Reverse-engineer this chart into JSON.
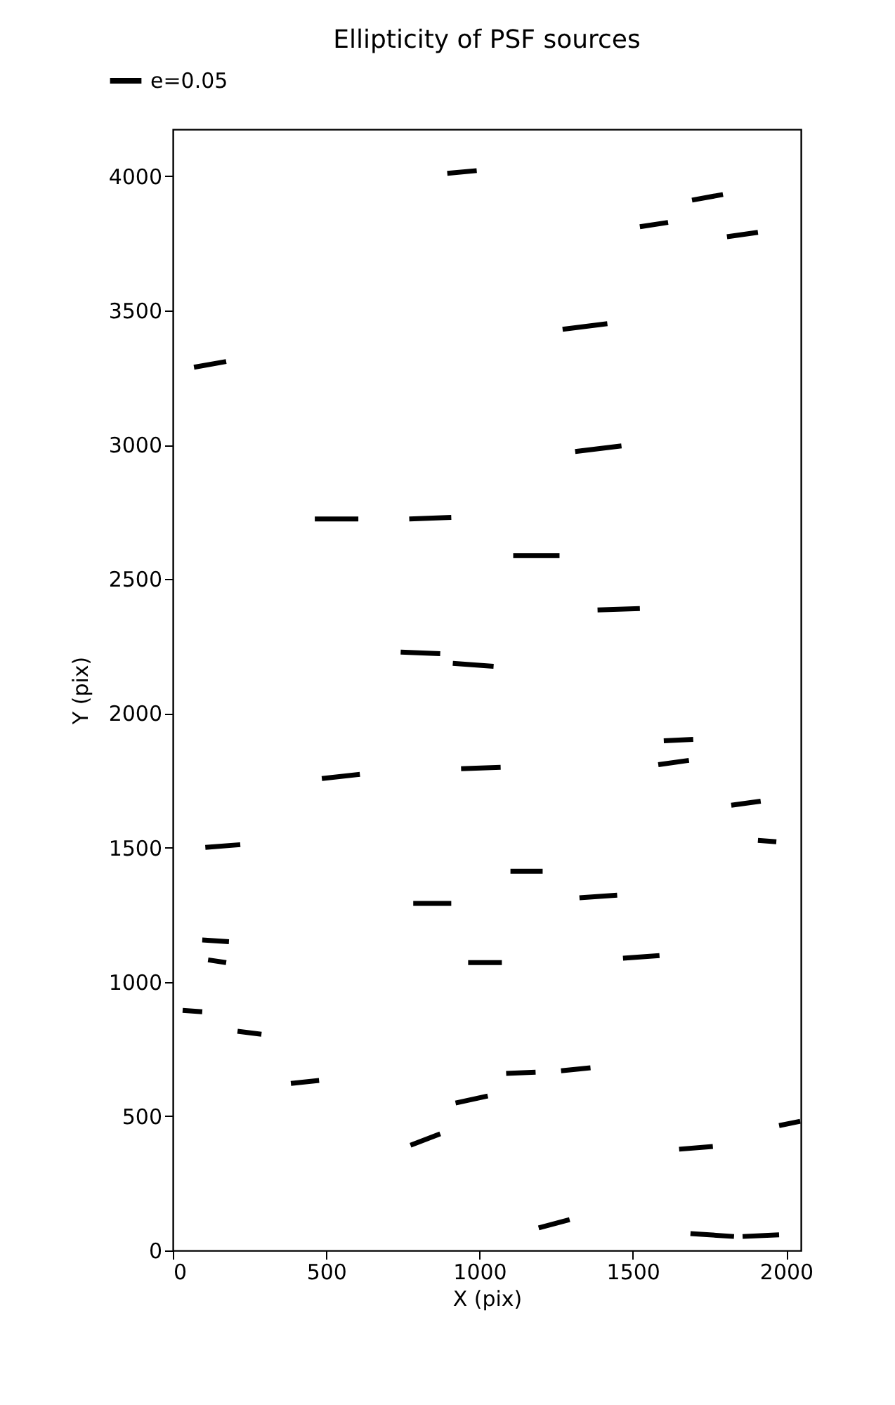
{
  "chart_data": {
    "type": "line",
    "title": "Ellipticity of PSF sources",
    "xlabel": "X (pix)",
    "ylabel": "Y (pix)",
    "xlim": [
      0,
      2048
    ],
    "ylim": [
      0,
      4175
    ],
    "xticks": [
      0,
      500,
      1000,
      1500,
      2000
    ],
    "yticks": [
      0,
      500,
      1000,
      1500,
      2000,
      2500,
      3000,
      3500,
      4000
    ],
    "grid": false,
    "legend": "top left",
    "series": [
      {
        "name": "e=0.05",
        "color": "#000000",
        "x": [
          895,
          991,
          null,
          1523,
          1615,
          null,
          1693,
          1794,
          null,
          1807,
          1908,
          null,
          1271,
          1417,
          null,
          69,
          174,
          null,
          1312,
          1463,
          null,
          463,
          605,
          null,
          771,
          908,
          null,
          1110,
          1261,
          null,
          1385,
          1523,
          null,
          743,
          872,
          null,
          913,
          1046,
          null,
          1601,
          1697,
          null,
          1583,
          1683,
          null,
          486,
          610,
          null,
          940,
          1069,
          null,
          1821,
          1917,
          null,
          106,
          220,
          null,
          1908,
          1968,
          null,
          1101,
          1206,
          null,
          784,
          908,
          null,
          1326,
          1449,
          null,
          96,
          183,
          null,
          115,
          174,
          null,
          963,
          1073,
          null,
          1468,
          1587,
          null,
          32,
          96,
          null,
          211,
          289,
          null,
          385,
          477,
          null,
          775,
          872,
          null,
          922,
          1027,
          null,
          1087,
          1183,
          null,
          1266,
          1362,
          null,
          1651,
          1761,
          null,
          1977,
          2046,
          null,
          1193,
          1294,
          null,
          1688,
          1830,
          null,
          1858,
          1977
        ],
        "values": [
          4011,
          4021,
          null,
          3812,
          3828,
          null,
          3911,
          3932,
          null,
          3775,
          3791,
          null,
          3430,
          3451,
          null,
          3289,
          3310,
          null,
          2975,
          2996,
          null,
          2724,
          2724,
          null,
          2724,
          2730,
          null,
          2588,
          2588,
          null,
          2385,
          2390,
          null,
          2228,
          2222,
          null,
          2186,
          2175,
          null,
          1898,
          1903,
          null,
          1809,
          1825,
          null,
          1757,
          1773,
          null,
          1794,
          1799,
          null,
          1658,
          1673,
          null,
          1501,
          1511,
          null,
          1527,
          1522,
          null,
          1412,
          1412,
          null,
          1292,
          1292,
          null,
          1313,
          1323,
          null,
          1156,
          1150,
          null,
          1082,
          1072,
          null,
          1072,
          1072,
          null,
          1088,
          1098,
          null,
          894,
          889,
          null,
          816,
          805,
          null,
          622,
          633,
          null,
          392,
          434,
          null,
          549,
          575,
          null,
          659,
          664,
          null,
          669,
          680,
          null,
          377,
          387,
          null,
          465,
          481,
          null,
          84,
          115,
          null,
          63,
          52,
          null,
          52,
          58
        ]
      }
    ]
  }
}
